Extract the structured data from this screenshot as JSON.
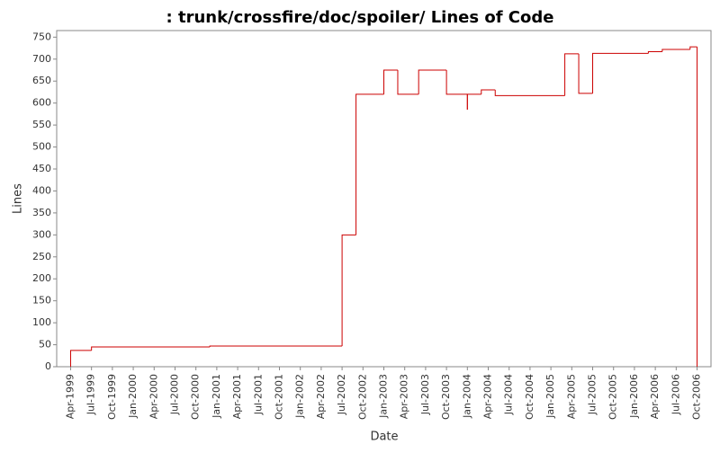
{
  "chart_data": {
    "type": "step-line",
    "title": ": trunk/crossfire/doc/spoiler/ Lines of Code",
    "x_label": "Date",
    "y_label": "Lines",
    "xlim": [
      "1999-02",
      "2006-12"
    ],
    "xticks": [
      {
        "value": "1999-04",
        "label": "Apr-1999"
      },
      {
        "value": "1999-07",
        "label": "Jul-1999"
      },
      {
        "value": "1999-10",
        "label": "Oct-1999"
      },
      {
        "value": "2000-01",
        "label": "Jan-2000"
      },
      {
        "value": "2000-04",
        "label": "Apr-2000"
      },
      {
        "value": "2000-07",
        "label": "Jul-2000"
      },
      {
        "value": "2000-10",
        "label": "Oct-2000"
      },
      {
        "value": "2001-01",
        "label": "Jan-2001"
      },
      {
        "value": "2001-04",
        "label": "Apr-2001"
      },
      {
        "value": "2001-07",
        "label": "Jul-2001"
      },
      {
        "value": "2001-10",
        "label": "Oct-2001"
      },
      {
        "value": "2002-01",
        "label": "Jan-2002"
      },
      {
        "value": "2002-04",
        "label": "Apr-2002"
      },
      {
        "value": "2002-07",
        "label": "Jul-2002"
      },
      {
        "value": "2002-10",
        "label": "Oct-2002"
      },
      {
        "value": "2003-01",
        "label": "Jan-2003"
      },
      {
        "value": "2003-04",
        "label": "Apr-2003"
      },
      {
        "value": "2003-07",
        "label": "Jul-2003"
      },
      {
        "value": "2003-10",
        "label": "Oct-2003"
      },
      {
        "value": "2004-01",
        "label": "Jan-2004"
      },
      {
        "value": "2004-04",
        "label": "Apr-2004"
      },
      {
        "value": "2004-07",
        "label": "Jul-2004"
      },
      {
        "value": "2004-10",
        "label": "Oct-2004"
      },
      {
        "value": "2005-01",
        "label": "Jan-2005"
      },
      {
        "value": "2005-04",
        "label": "Apr-2005"
      },
      {
        "value": "2005-07",
        "label": "Jul-2005"
      },
      {
        "value": "2005-10",
        "label": "Oct-2005"
      },
      {
        "value": "2006-01",
        "label": "Jan-2006"
      },
      {
        "value": "2006-04",
        "label": "Apr-2006"
      },
      {
        "value": "2006-07",
        "label": "Jul-2006"
      },
      {
        "value": "2006-10",
        "label": "Oct-2006"
      }
    ],
    "ylim": [
      0,
      765
    ],
    "yticks": [
      0,
      50,
      100,
      150,
      200,
      250,
      300,
      350,
      400,
      450,
      500,
      550,
      600,
      650,
      700,
      750
    ],
    "grid": false,
    "x": [
      "1999-04",
      "1999-04",
      "1999-07",
      "2000-12",
      "2002-07",
      "2002-09",
      "2003-01",
      "2003-03",
      "2003-06",
      "2003-10",
      "2004-01",
      "2004-01",
      "2004-03",
      "2004-05",
      "2005-03",
      "2005-05",
      "2005-07",
      "2006-03",
      "2006-05",
      "2006-09",
      "2006-10"
    ],
    "series": [
      {
        "color": "#cc0000",
        "values": [
          0,
          37,
          45,
          47,
          300,
          620,
          675,
          620,
          675,
          620,
          585,
          620,
          630,
          617,
          712,
          622,
          713,
          717,
          722,
          728,
          0
        ]
      }
    ]
  }
}
